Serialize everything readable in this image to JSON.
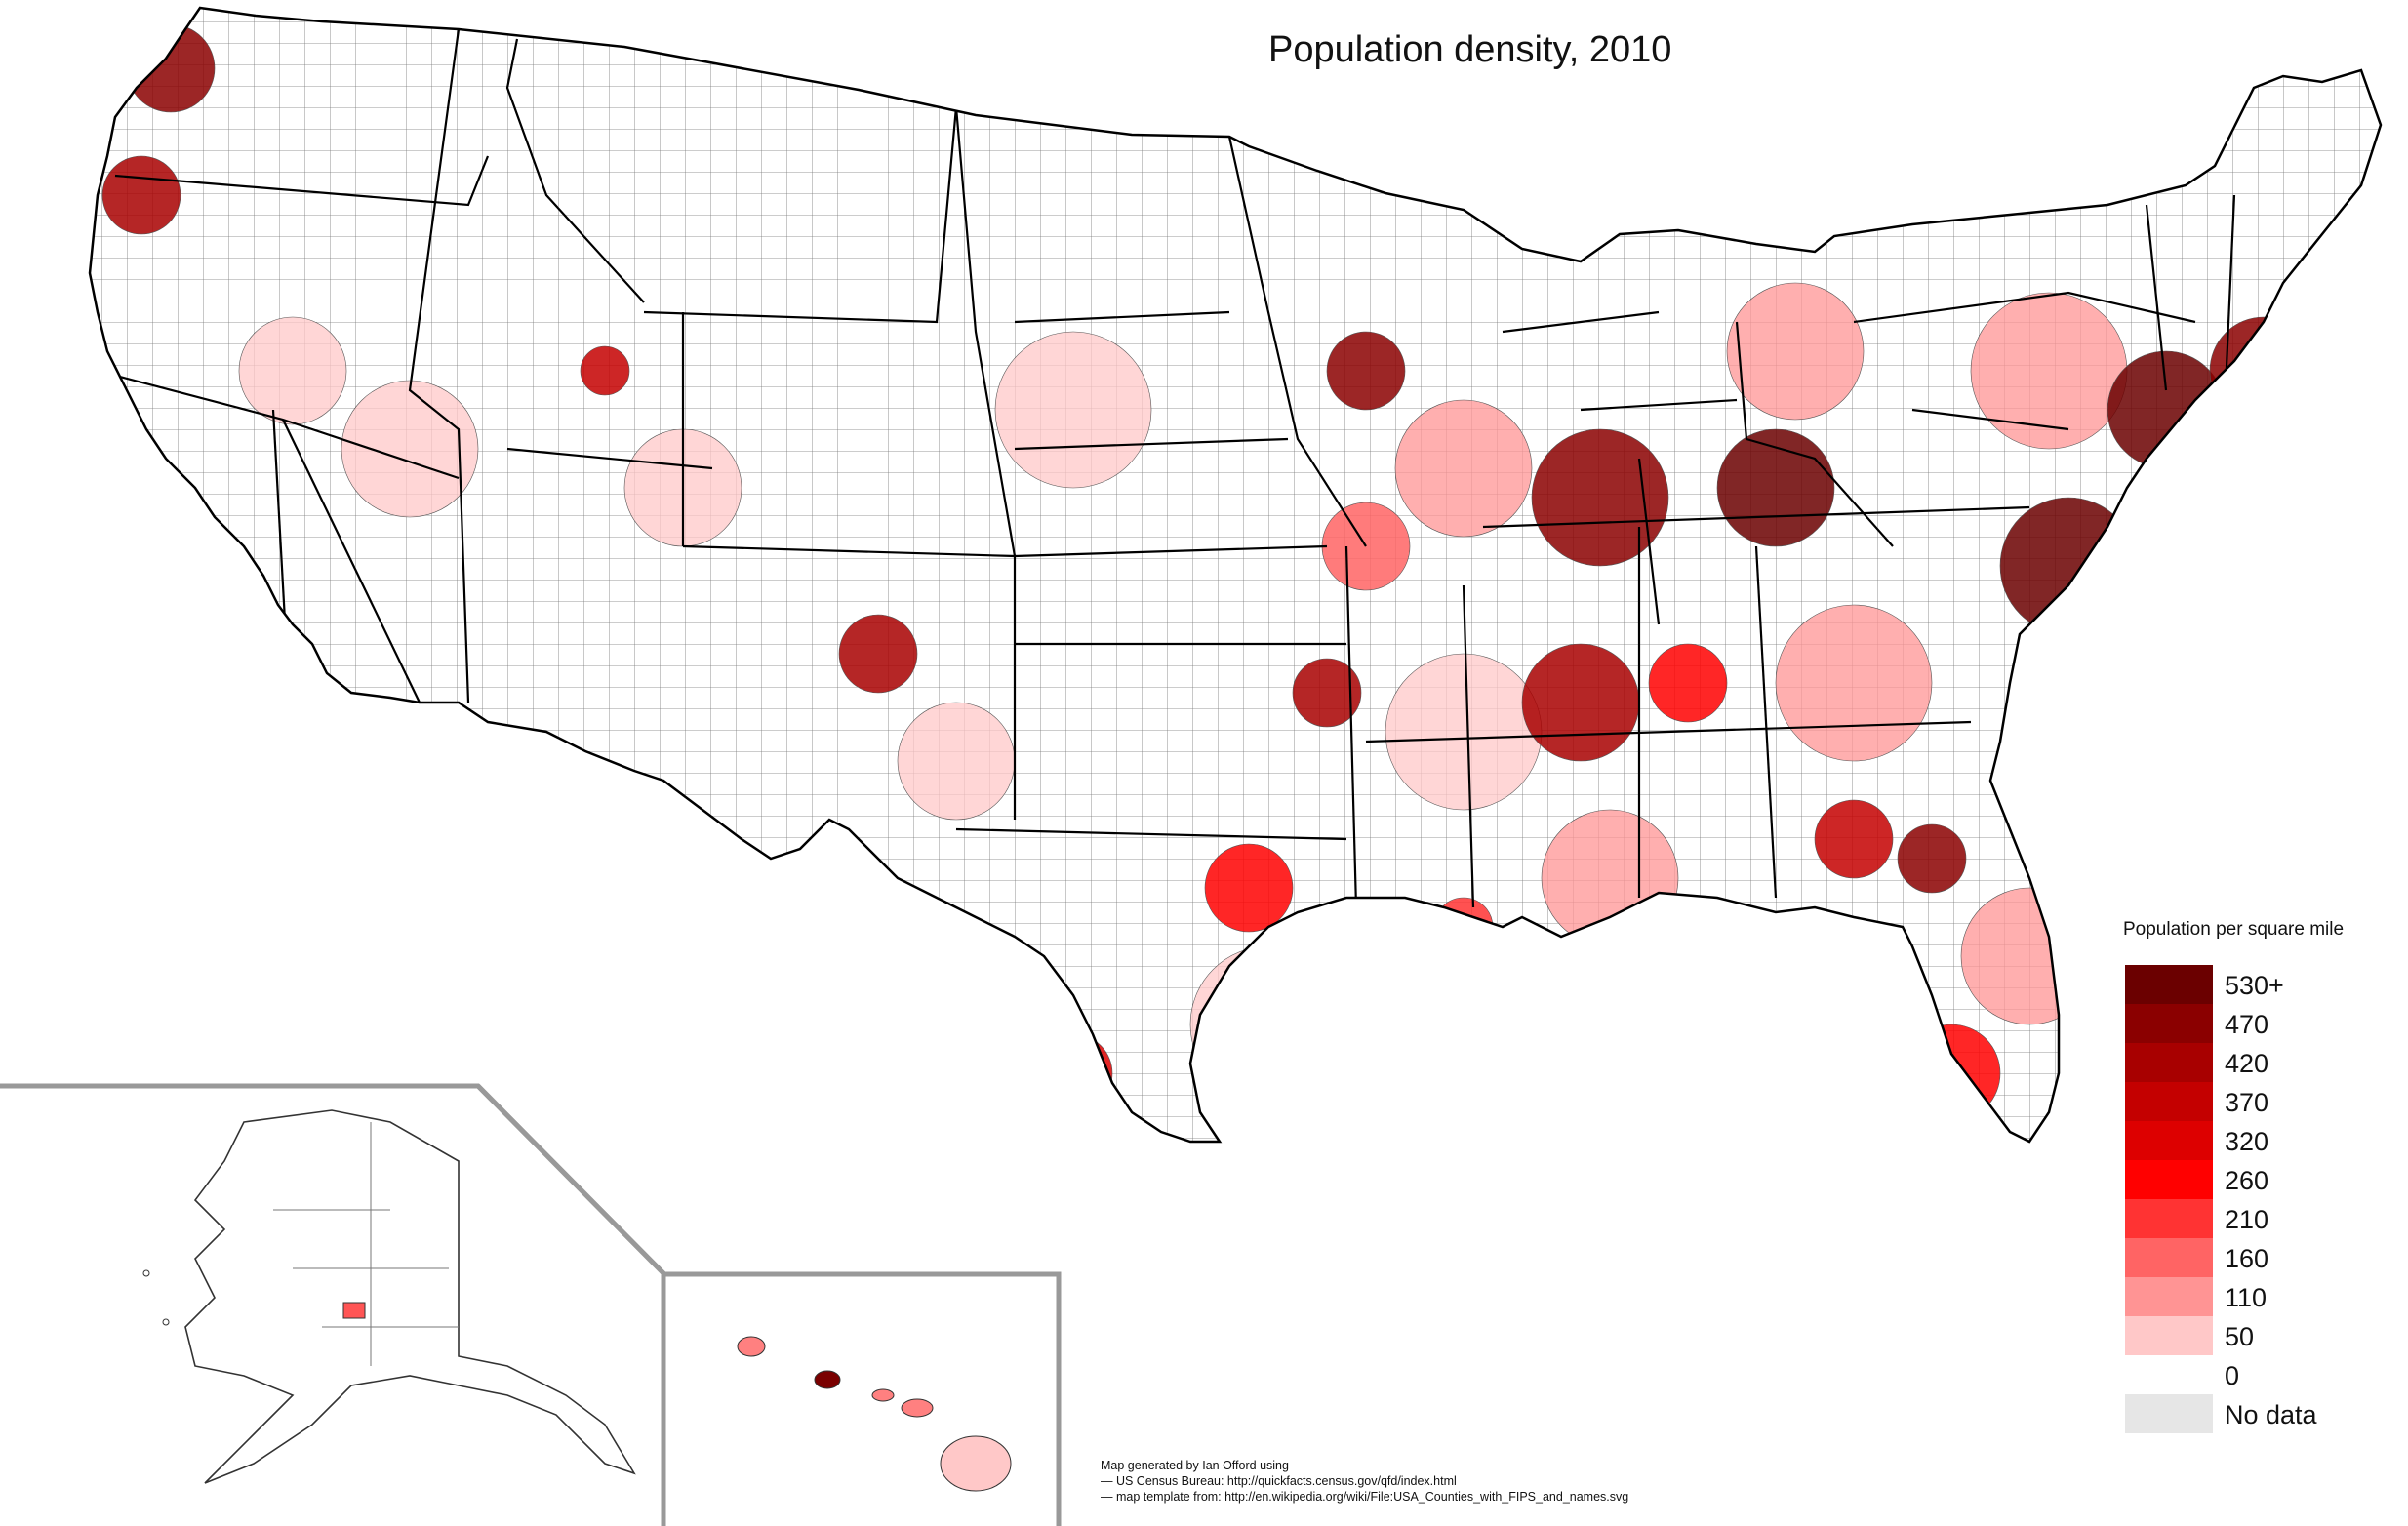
{
  "title": "Population density, 2010",
  "legend": {
    "title": "Population per square mile",
    "items": [
      {
        "label": "530+",
        "color": "#6b0000"
      },
      {
        "label": "470",
        "color": "#8b0000"
      },
      {
        "label": "420",
        "color": "#a80000"
      },
      {
        "label": "370",
        "color": "#c40000"
      },
      {
        "label": "320",
        "color": "#dd0000"
      },
      {
        "label": "260",
        "color": "#ff0000"
      },
      {
        "label": "210",
        "color": "#ff3333"
      },
      {
        "label": "160",
        "color": "#ff6464"
      },
      {
        "label": "110",
        "color": "#ff9494"
      },
      {
        "label": "50",
        "color": "#ffc8c8"
      },
      {
        "label": "0",
        "color": "#ffffff"
      },
      {
        "label": "No data",
        "color": "#e6e6e6"
      }
    ]
  },
  "credits": {
    "line1": "Map generated by Ian Offord using",
    "line2": "— US Census Bureau: http://quickfacts.census.gov/qfd/index.html",
    "line3": "— map template from: http://en.wikipedia.org/wiki/File:USA_Counties_with_FIPS_and_names.svg"
  },
  "colors": {
    "county_border": "#555555",
    "state_border": "#000000",
    "inset_border": "#999999",
    "light_fill": "#fff2f2"
  }
}
